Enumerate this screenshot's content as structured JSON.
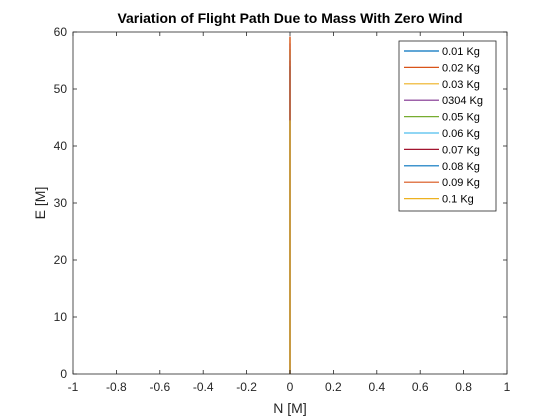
{
  "chart_data": {
    "type": "line",
    "title": "Variation of Flight Path Due to Mass With Zero Wind",
    "xlabel": "N [M]",
    "ylabel": "E [M]",
    "xlim": [
      -1,
      1
    ],
    "ylim": [
      0,
      60
    ],
    "xticks": [
      "-1",
      "-0.8",
      "-0.6",
      "-0.4",
      "-0.2",
      "0",
      "0.2",
      "0.4",
      "0.6",
      "0.8",
      "1"
    ],
    "xtick_values": [
      -1,
      -0.8,
      -0.6,
      -0.4,
      -0.2,
      0,
      0.2,
      0.4,
      0.6,
      0.8,
      1
    ],
    "yticks": [
      "0",
      "10",
      "20",
      "30",
      "40",
      "50",
      "60"
    ],
    "ytick_values": [
      0,
      10,
      20,
      30,
      40,
      50,
      60
    ],
    "grid": false,
    "legend_position": "top-right",
    "series": [
      {
        "name": "0.01 Kg",
        "color": "#0072BD",
        "x": [
          0,
          0
        ],
        "y": [
          0,
          44.5
        ]
      },
      {
        "name": "0.02 Kg",
        "color": "#D95319",
        "x": [
          0,
          0
        ],
        "y": [
          0,
          59.2
        ]
      },
      {
        "name": "0.03 Kg",
        "color": "#EDB120",
        "x": [
          0,
          0
        ],
        "y": [
          0,
          59
        ]
      },
      {
        "name": "0304 Kg",
        "color": "#7E2F8E",
        "x": [
          0,
          0
        ],
        "y": [
          0,
          58
        ]
      },
      {
        "name": "0.05 Kg",
        "color": "#77AC30",
        "x": [
          0,
          0
        ],
        "y": [
          0,
          57
        ]
      },
      {
        "name": "0.06 Kg",
        "color": "#4DBEEE",
        "x": [
          0,
          0
        ],
        "y": [
          0,
          56
        ]
      },
      {
        "name": "0.07 Kg",
        "color": "#A2142F",
        "x": [
          0,
          0
        ],
        "y": [
          0,
          55
        ]
      },
      {
        "name": "0.08 Kg",
        "color": "#0072BD",
        "x": [
          0,
          0
        ],
        "y": [
          0,
          54
        ]
      },
      {
        "name": "0.09 Kg",
        "color": "#D95319",
        "x": [
          0,
          0
        ],
        "y": [
          0,
          59.2
        ]
      },
      {
        "name": "0.1 Kg",
        "color": "#EDB120",
        "x": [
          0,
          0
        ],
        "y": [
          0,
          44.5
        ]
      }
    ]
  }
}
